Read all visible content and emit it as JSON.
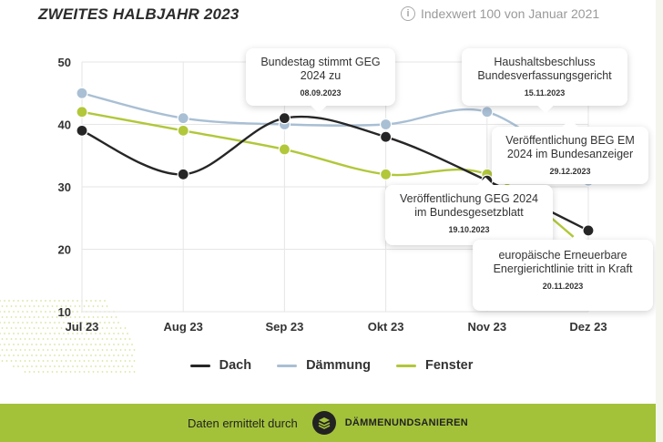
{
  "header": {
    "title": "ZWEITES HALBJAHR 2023",
    "index_note": "Indexwert 100 von Januar 2021",
    "info_icon_glyph": "i"
  },
  "chart_data": {
    "type": "line",
    "categories": [
      "Jul 23",
      "Aug 23",
      "Sep 23",
      "Okt 23",
      "Nov 23",
      "Dez 23"
    ],
    "ylim": [
      10,
      50
    ],
    "yticks": [
      "10",
      "20",
      "30",
      "40",
      "50"
    ],
    "grid": true,
    "legend_position": "bottom",
    "series": [
      {
        "name": "Dach",
        "color": "#262626",
        "values": [
          39,
          32,
          41,
          38,
          31,
          23
        ]
      },
      {
        "name": "Dämmung",
        "color": "#a9bfd4",
        "values": [
          45,
          41,
          40,
          40,
          42,
          31
        ]
      },
      {
        "name": "Fenster",
        "color": "#b2c73a",
        "values": [
          42,
          39,
          36,
          32,
          32,
          20
        ]
      }
    ]
  },
  "callouts": [
    {
      "text": "Bundestag stimmt GEG 2024 zu",
      "date": "08.09.2023"
    },
    {
      "text": "Haushaltsbeschluss Bundesverfassungsgericht",
      "date": "15.11.2023"
    },
    {
      "text": "Veröffentlichung BEG EM 2024 im Bundesanzeiger",
      "date": "29.12.2023"
    },
    {
      "text": "Veröffentlichung GEG 2024 im Bundesgesetzblatt",
      "date": "19.10.2023"
    },
    {
      "text": "europäische Erneuerbare Energierichtlinie tritt in Kraft",
      "date": "20.11.2023"
    }
  ],
  "footer": {
    "text": "Daten ermittelt durch",
    "brand": "DÄMMENUNDSANIEREN"
  },
  "colors": {
    "accent_green": "#a3c23a",
    "grid": "#e6e6e6"
  }
}
